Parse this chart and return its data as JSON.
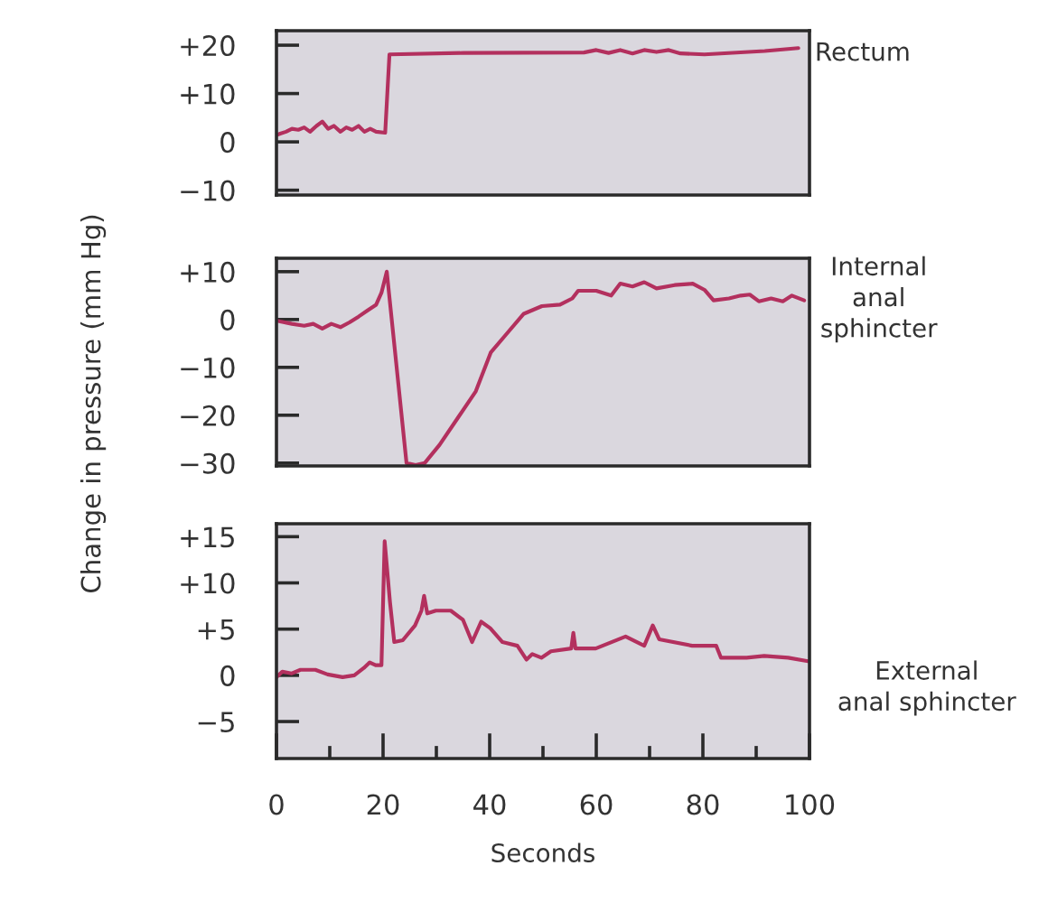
{
  "chart_data": [
    {
      "type": "line",
      "xlim": [
        0,
        100
      ],
      "ylim": [
        -11,
        23
      ],
      "tick_labels": "y",
      "yticks": [
        {
          "value": -10,
          "label": "−10"
        },
        0,
        {
          "value": 10,
          "label": "+10"
        },
        {
          "value": 20,
          "label": "+20"
        }
      ],
      "series": [
        {
          "name": "Rectum",
          "color": "#b3305e",
          "x": [
            0,
            0.7,
            1.8,
            2.9,
            4.1,
            5.2,
            6.3,
            7.5,
            8.6,
            9.7,
            10.8,
            12.0,
            13.1,
            14.2,
            15.4,
            16.5,
            17.6,
            18.7,
            20.4,
            21.2,
            35.1,
            57.7,
            60.0,
            62.3,
            64.5,
            66.8,
            69.0,
            71.3,
            73.6,
            75.8,
            80.3,
            91.6,
            97.9
          ],
          "values": [
            1.4,
            1.7,
            2.1,
            2.7,
            2.5,
            3.0,
            2.1,
            3.3,
            4.2,
            2.7,
            3.3,
            2.1,
            3.0,
            2.5,
            3.3,
            2.1,
            2.7,
            2.1,
            1.9,
            18.1,
            18.4,
            18.5,
            19.0,
            18.4,
            19.0,
            18.3,
            19.0,
            18.6,
            19.0,
            18.3,
            18.1,
            18.8,
            19.4
          ]
        }
      ]
    },
    {
      "type": "line",
      "xlim": [
        0,
        100
      ],
      "ylim": [
        -30.6,
        12.8
      ],
      "tick_labels": "y",
      "ylabel": "Change in pressure (mm Hg)",
      "yticks": [
        {
          "value": -30,
          "label": "−30"
        },
        {
          "value": -20,
          "label": "−20"
        },
        {
          "value": -10,
          "label": "−10"
        },
        0,
        {
          "value": 10,
          "label": "+10"
        }
      ],
      "series": [
        {
          "name": "Internal\nanal\nsphincter",
          "color": "#b3305e",
          "x": [
            0,
            0.7,
            2.9,
            5.2,
            6.9,
            8.6,
            10.3,
            12.0,
            13.7,
            15.4,
            17.1,
            18.7,
            19.7,
            20.7,
            24.4,
            26.1,
            27.8,
            30.6,
            34.0,
            37.4,
            40.2,
            43.1,
            46.4,
            49.8,
            53.2,
            55.5,
            56.6,
            60.0,
            62.8,
            64.5,
            66.8,
            69.0,
            71.3,
            74.7,
            78.1,
            80.3,
            82.0,
            84.9,
            87.1,
            88.8,
            90.5,
            92.8,
            95.0,
            96.7,
            99.0
          ],
          "values": [
            -0.2,
            -0.4,
            -0.9,
            -1.3,
            -0.9,
            -1.9,
            -0.9,
            -1.6,
            -0.6,
            0.6,
            1.9,
            3.1,
            5.6,
            10,
            -30,
            -30.4,
            -30,
            -26.2,
            -20.6,
            -15,
            -6.9,
            -3.1,
            1.2,
            2.8,
            3.1,
            4.4,
            6,
            6,
            5,
            7.5,
            6.9,
            7.8,
            6.5,
            7.2,
            7.5,
            6.2,
            4,
            4.4,
            5,
            5.2,
            3.8,
            4.4,
            3.8,
            5,
            4
          ]
        }
      ]
    },
    {
      "type": "line",
      "xlim": [
        0,
        100
      ],
      "ylim": [
        -9,
        16.4
      ],
      "xlabel": "Seconds",
      "xticks": [
        0,
        {
          "value": 10,
          "label": null
        },
        20,
        {
          "value": 30,
          "label": null
        },
        40,
        {
          "value": 50,
          "label": null
        },
        60,
        {
          "value": 70,
          "label": null
        },
        80,
        {
          "value": 90,
          "label": null
        },
        100
      ],
      "yticks": [
        {
          "value": -5,
          "label": "−5"
        },
        0,
        {
          "value": 5,
          "label": "+5"
        },
        {
          "value": 10,
          "label": "+10"
        },
        {
          "value": 15,
          "label": "+15"
        }
      ],
      "series": [
        {
          "name": "External\nanal sphincter",
          "color": "#b3305e",
          "x": [
            0,
            1.1,
            2.8,
            4.5,
            7.3,
            9.6,
            12.4,
            14.6,
            16.4,
            17.5,
            18.6,
            19.7,
            20.3,
            21.3,
            22.1,
            23.7,
            26.0,
            27.2,
            27.7,
            28.3,
            29.9,
            32.7,
            35.0,
            36.7,
            38.4,
            40.1,
            42.4,
            45.2,
            46.9,
            48.0,
            49.7,
            51.5,
            55.3,
            55.7,
            56.1,
            59.9,
            65.5,
            69.0,
            70.6,
            71.8,
            78.0,
            82.5,
            83.4,
            88.2,
            91.5,
            96.0,
            100.0
          ],
          "values": [
            -0.2,
            0.4,
            0.2,
            0.6,
            0.6,
            0.1,
            -0.2,
            0,
            0.8,
            1.4,
            1.1,
            1.1,
            14.5,
            7.9,
            3.6,
            3.8,
            5.4,
            7,
            8.6,
            6.7,
            7,
            7,
            6,
            3.6,
            5.8,
            5.1,
            3.6,
            3.2,
            1.7,
            2.3,
            1.9,
            2.6,
            2.9,
            4.6,
            2.9,
            2.9,
            4.2,
            3.2,
            5.4,
            3.9,
            3.2,
            3.2,
            1.9,
            1.9,
            2.1,
            1.9,
            1.5
          ]
        }
      ]
    }
  ]
}
